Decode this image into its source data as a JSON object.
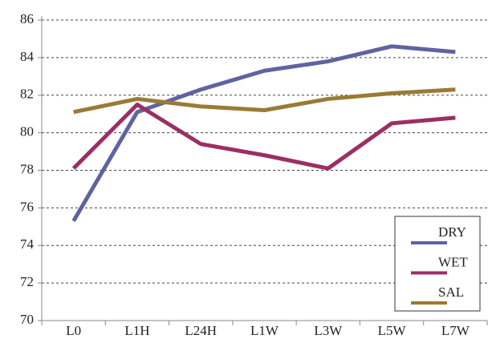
{
  "chart_data": {
    "type": "line",
    "categories": [
      "L0",
      "L1H",
      "L24H",
      "L1W",
      "L3W",
      "L5W",
      "L7W"
    ],
    "series": [
      {
        "name": "DRY",
        "color": "#5f63a0",
        "values": [
          75.3,
          81.1,
          82.3,
          83.3,
          83.8,
          84.6,
          84.3
        ]
      },
      {
        "name": "WET",
        "color": "#9b2f63",
        "values": [
          78.1,
          81.5,
          79.4,
          78.8,
          78.1,
          80.5,
          80.8
        ]
      },
      {
        "name": "SAL",
        "color": "#9a7a35",
        "values": [
          81.1,
          81.8,
          81.4,
          81.2,
          81.8,
          82.1,
          82.3
        ]
      }
    ],
    "ylim": [
      70,
      86
    ],
    "yticks": [
      70,
      72,
      74,
      76,
      78,
      80,
      82,
      84,
      86
    ],
    "grid": true,
    "legend": "lower right"
  }
}
